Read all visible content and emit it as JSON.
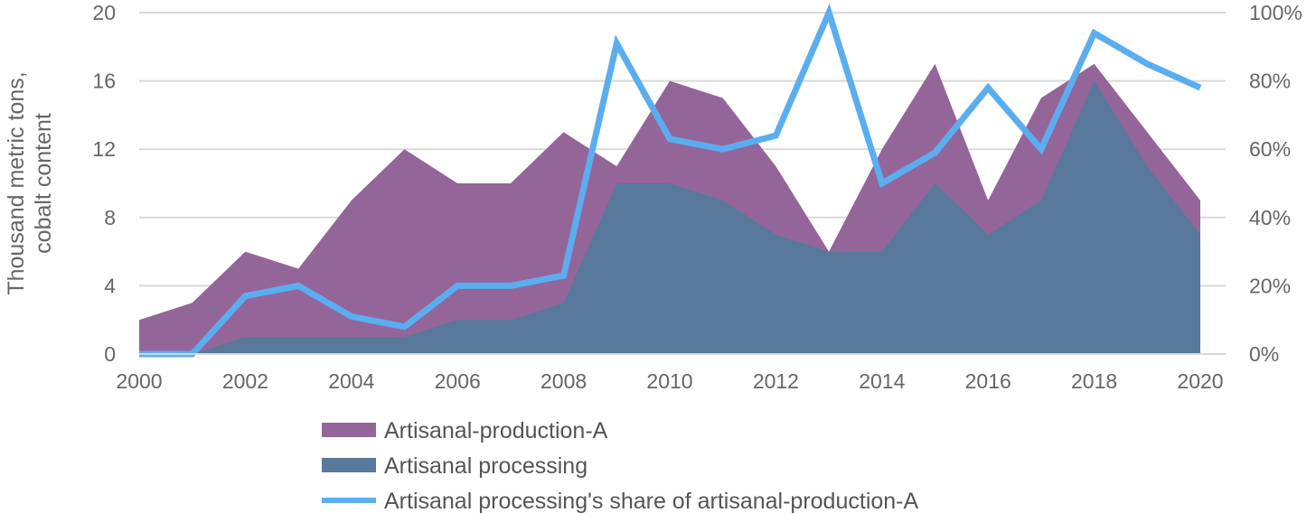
{
  "chart_data": {
    "type": "area",
    "title": "",
    "x": [
      2000,
      2001,
      2002,
      2003,
      2004,
      2005,
      2006,
      2007,
      2008,
      2009,
      2010,
      2011,
      2012,
      2013,
      2014,
      2015,
      2016,
      2017,
      2018,
      2019,
      2020
    ],
    "x_tick_labels": [
      "2000",
      "2002",
      "2004",
      "2006",
      "2008",
      "2010",
      "2012",
      "2014",
      "2016",
      "2018",
      "2020"
    ],
    "ylabel_lines": [
      "Thousand  metric tons,",
      "cobalt content"
    ],
    "ylim": [
      0,
      20
    ],
    "y_tick_labels": [
      "0",
      "4",
      "8",
      "12",
      "16",
      "20"
    ],
    "y2lim": [
      0,
      100
    ],
    "y2_tick_labels": [
      "0%",
      "20%",
      "40%",
      "60%",
      "80%",
      "100%"
    ],
    "grid": "horizontal",
    "legend_position": "bottom",
    "series": [
      {
        "name": "Artisanal-production-A",
        "type": "area",
        "axis": "left",
        "color": "#946599",
        "values": [
          2,
          3,
          6,
          5,
          9,
          12,
          10,
          10,
          13,
          11,
          16,
          15,
          11,
          6,
          12,
          17,
          9,
          15,
          17,
          13,
          9
        ]
      },
      {
        "name": "Artisanal processing",
        "type": "area",
        "axis": "left",
        "color": "#58789C",
        "values": [
          0,
          0,
          1,
          1,
          1,
          1,
          2,
          2,
          3,
          10,
          10,
          9,
          7,
          6,
          6,
          10,
          7,
          9,
          16,
          11,
          7
        ]
      },
      {
        "name": "Artisanal processing's share of artisanal-production-A",
        "type": "line",
        "axis": "right",
        "color": "#5AAEF0",
        "values": [
          0,
          0,
          17,
          20,
          11,
          8,
          20,
          20,
          23,
          91,
          63,
          60,
          64,
          100,
          50,
          59,
          78,
          60,
          94,
          85,
          78
        ]
      }
    ]
  }
}
